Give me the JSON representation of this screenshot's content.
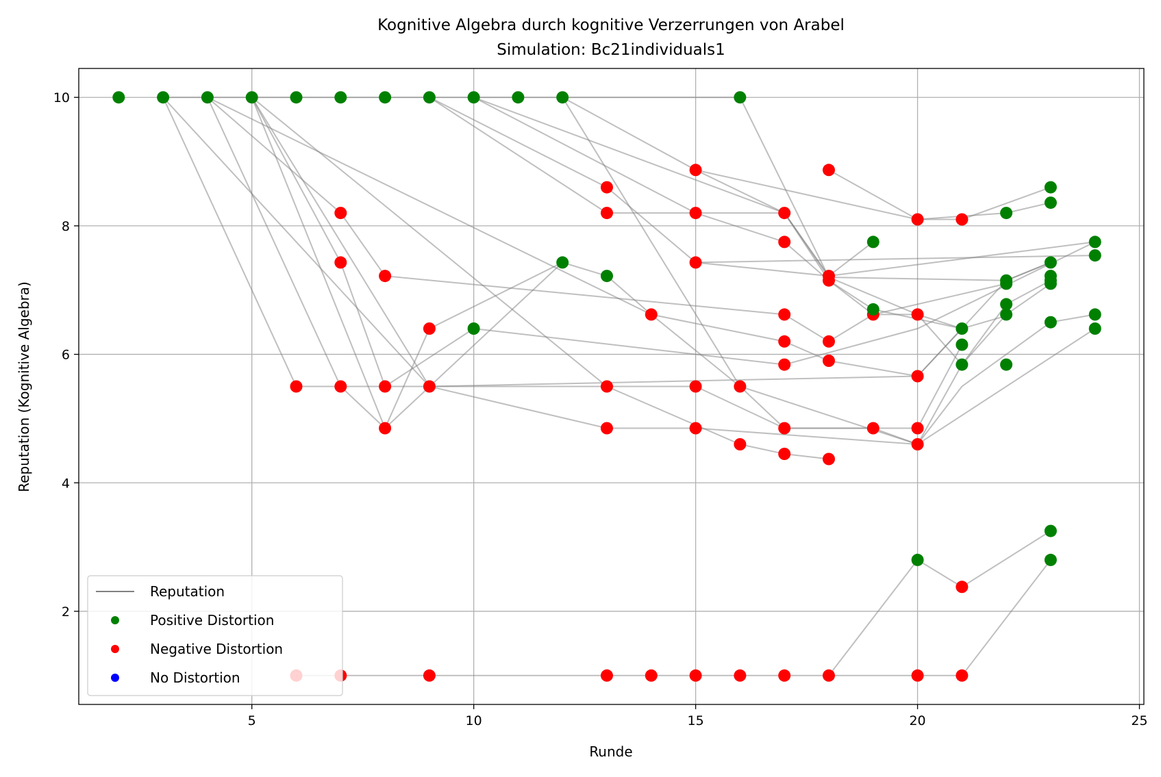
{
  "chart_data": {
    "type": "scatter",
    "title": "Kognitive Algebra durch kognitive Verzerrungen von Arabel",
    "subtitle": "Simulation: Bc21individuals1",
    "xlabel": "Runde",
    "ylabel": "Reputation (Kognitive Algebra)",
    "xlim": [
      1.1,
      25.1
    ],
    "ylim": [
      0.55,
      10.45
    ],
    "xticks": [
      5,
      10,
      15,
      20,
      25
    ],
    "yticks": [
      2,
      4,
      6,
      8,
      10
    ],
    "grid": true,
    "legend_position": "lower-left",
    "legend": [
      {
        "label": "Reputation",
        "kind": "line",
        "color": "#808080"
      },
      {
        "label": "Positive Distortion",
        "kind": "marker",
        "color": "#008000"
      },
      {
        "label": "Negative Distortion",
        "kind": "marker",
        "color": "#ff0000"
      },
      {
        "label": "No Distortion",
        "kind": "marker",
        "color": "#0000ff"
      }
    ],
    "reputation_lines": [
      [
        [
          3,
          10
        ],
        [
          4,
          10
        ],
        [
          5,
          10
        ],
        [
          6,
          10
        ],
        [
          7,
          10
        ],
        [
          8,
          10
        ],
        [
          9,
          10
        ],
        [
          10,
          10
        ],
        [
          11,
          10
        ],
        [
          12,
          10
        ]
      ],
      [
        [
          12,
          10
        ],
        [
          16,
          10
        ]
      ],
      [
        [
          6,
          1
        ],
        [
          7,
          1
        ],
        [
          8,
          1
        ],
        [
          9,
          1
        ],
        [
          10,
          1
        ],
        [
          13,
          1
        ],
        [
          14,
          1
        ],
        [
          15,
          1
        ],
        [
          16,
          1
        ],
        [
          17,
          1
        ],
        [
          18,
          1
        ]
      ],
      [
        [
          18,
          1
        ],
        [
          20,
          1
        ],
        [
          21,
          1
        ]
      ],
      [
        [
          18,
          1
        ],
        [
          20,
          2.8
        ],
        [
          21,
          2.38
        ],
        [
          23,
          3.25
        ]
      ],
      [
        [
          21,
          1
        ],
        [
          23,
          2.8
        ]
      ],
      [
        [
          3,
          10
        ],
        [
          6,
          5.5
        ],
        [
          7,
          5.5
        ],
        [
          8,
          4.85
        ],
        [
          12,
          7.43
        ],
        [
          13,
          7.22
        ],
        [
          14,
          6.62
        ],
        [
          17,
          6.2
        ],
        [
          18,
          5.9
        ],
        [
          20,
          5.66
        ],
        [
          21,
          6.4
        ],
        [
          22,
          7.15
        ],
        [
          23,
          7.43
        ]
      ],
      [
        [
          3,
          10
        ],
        [
          9,
          5.5
        ],
        [
          13,
          4.85
        ],
        [
          15,
          4.85
        ],
        [
          20,
          4.6
        ],
        [
          21,
          5.84
        ],
        [
          22,
          6.62
        ],
        [
          23,
          7.1
        ]
      ],
      [
        [
          4,
          10
        ],
        [
          7,
          5.5
        ],
        [
          9,
          5.5
        ],
        [
          15,
          5.5
        ],
        [
          17,
          4.85
        ],
        [
          19,
          4.85
        ],
        [
          20,
          4.85
        ],
        [
          21,
          6.15
        ]
      ],
      [
        [
          4,
          10
        ],
        [
          7,
          8.2
        ],
        [
          8,
          7.22
        ],
        [
          17,
          6.62
        ],
        [
          18,
          6.2
        ],
        [
          19,
          6.62
        ],
        [
          20,
          6.62
        ],
        [
          21,
          5.84
        ],
        [
          22,
          6.78
        ],
        [
          23,
          7.15
        ]
      ],
      [
        [
          4,
          10
        ],
        [
          14,
          6.62
        ],
        [
          16,
          5.5
        ],
        [
          20,
          4.6
        ],
        [
          21,
          5.5
        ],
        [
          23,
          6.5
        ],
        [
          24,
          6.62
        ]
      ],
      [
        [
          5,
          10
        ],
        [
          7,
          7.43
        ],
        [
          8,
          5.5
        ],
        [
          10,
          6.4
        ],
        [
          17,
          5.84
        ],
        [
          20,
          6.4
        ],
        [
          24,
          7.75
        ]
      ],
      [
        [
          5,
          10
        ],
        [
          8,
          4.85
        ],
        [
          9,
          6.4
        ],
        [
          12,
          7.43
        ]
      ],
      [
        [
          5,
          10
        ],
        [
          13,
          5.5
        ],
        [
          16,
          4.6
        ],
        [
          17,
          4.45
        ],
        [
          18,
          4.37
        ]
      ],
      [
        [
          5,
          10
        ],
        [
          9,
          5.5
        ],
        [
          20,
          5.66
        ],
        [
          21,
          6.4
        ]
      ],
      [
        [
          9,
          10
        ],
        [
          13,
          8.6
        ],
        [
          15,
          7.43
        ],
        [
          18,
          7.22
        ],
        [
          24,
          7.75
        ]
      ],
      [
        [
          9,
          10
        ],
        [
          13,
          8.2
        ],
        [
          15,
          8.2
        ],
        [
          17,
          7.75
        ],
        [
          18,
          7.15
        ],
        [
          19,
          6.7
        ],
        [
          21,
          6.4
        ]
      ],
      [
        [
          10,
          10
        ],
        [
          15,
          8.2
        ],
        [
          17,
          8.2
        ],
        [
          18,
          7.22
        ],
        [
          19,
          7.75
        ]
      ],
      [
        [
          10,
          10
        ],
        [
          17,
          8.2
        ],
        [
          18,
          7.15
        ],
        [
          19,
          6.62
        ],
        [
          22,
          7.1
        ]
      ],
      [
        [
          12,
          10
        ],
        [
          15,
          8.87
        ],
        [
          17,
          8.2
        ],
        [
          18,
          7.2
        ],
        [
          22,
          7.15
        ],
        [
          23,
          7.43
        ]
      ],
      [
        [
          12,
          10
        ],
        [
          16,
          5.5
        ],
        [
          17,
          4.85
        ],
        [
          19,
          4.85
        ],
        [
          20,
          4.6
        ],
        [
          24,
          6.4
        ]
      ],
      [
        [
          15,
          8.87
        ],
        [
          20,
          8.1
        ],
        [
          22,
          8.2
        ],
        [
          23,
          8.36
        ]
      ],
      [
        [
          18,
          8.87
        ],
        [
          20,
          8.1
        ],
        [
          21,
          8.1
        ],
        [
          23,
          8.6
        ]
      ],
      [
        [
          15,
          7.43
        ],
        [
          24,
          7.54
        ]
      ],
      [
        [
          16,
          10
        ],
        [
          18,
          7.2
        ],
        [
          20,
          6.62
        ],
        [
          21,
          6.4
        ],
        [
          22,
          6.6
        ]
      ]
    ],
    "positive_points": [
      [
        2,
        10
      ],
      [
        3,
        10
      ],
      [
        4,
        10
      ],
      [
        5,
        10
      ],
      [
        6,
        10
      ],
      [
        7,
        10
      ],
      [
        8,
        10
      ],
      [
        9,
        10
      ],
      [
        10,
        10
      ],
      [
        11,
        10
      ],
      [
        12,
        10
      ],
      [
        16,
        10
      ],
      [
        12,
        7.43
      ],
      [
        13,
        7.22
      ],
      [
        10,
        6.4
      ],
      [
        19,
        7.75
      ],
      [
        19,
        6.7
      ],
      [
        20,
        2.8
      ],
      [
        21,
        6.4
      ],
      [
        21,
        6.15
      ],
      [
        21,
        5.84
      ],
      [
        22,
        8.2
      ],
      [
        22,
        7.15
      ],
      [
        22,
        7.1
      ],
      [
        22,
        6.78
      ],
      [
        22,
        6.62
      ],
      [
        22,
        5.84
      ],
      [
        23,
        8.6
      ],
      [
        23,
        8.36
      ],
      [
        23,
        7.43
      ],
      [
        23,
        7.22
      ],
      [
        23,
        7.15
      ],
      [
        23,
        7.1
      ],
      [
        23,
        6.5
      ],
      [
        23,
        3.25
      ],
      [
        23,
        2.8
      ],
      [
        24,
        7.75
      ],
      [
        24,
        7.54
      ],
      [
        24,
        6.62
      ],
      [
        24,
        6.4
      ]
    ],
    "negative_points": [
      [
        6,
        5.5
      ],
      [
        7,
        8.2
      ],
      [
        7,
        7.43
      ],
      [
        7,
        5.5
      ],
      [
        8,
        7.22
      ],
      [
        8,
        5.5
      ],
      [
        8,
        4.85
      ],
      [
        9,
        6.4
      ],
      [
        9,
        5.5
      ],
      [
        13,
        8.6
      ],
      [
        13,
        8.2
      ],
      [
        13,
        5.5
      ],
      [
        13,
        4.85
      ],
      [
        14,
        6.62
      ],
      [
        15,
        8.87
      ],
      [
        15,
        8.2
      ],
      [
        15,
        7.43
      ],
      [
        15,
        5.5
      ],
      [
        15,
        4.85
      ],
      [
        16,
        5.5
      ],
      [
        16,
        4.6
      ],
      [
        17,
        8.2
      ],
      [
        17,
        7.75
      ],
      [
        17,
        6.62
      ],
      [
        17,
        6.2
      ],
      [
        17,
        5.84
      ],
      [
        17,
        4.85
      ],
      [
        17,
        4.45
      ],
      [
        18,
        8.87
      ],
      [
        18,
        7.22
      ],
      [
        18,
        7.15
      ],
      [
        18,
        6.2
      ],
      [
        18,
        5.9
      ],
      [
        18,
        4.37
      ],
      [
        19,
        6.62
      ],
      [
        19,
        4.85
      ],
      [
        20,
        8.1
      ],
      [
        20,
        6.62
      ],
      [
        20,
        5.66
      ],
      [
        20,
        4.85
      ],
      [
        20,
        4.6
      ],
      [
        21,
        8.1
      ],
      [
        21,
        2.38
      ],
      [
        6,
        1
      ],
      [
        7,
        1
      ],
      [
        9,
        1
      ],
      [
        13,
        1
      ],
      [
        14,
        1
      ],
      [
        15,
        1
      ],
      [
        16,
        1
      ],
      [
        17,
        1
      ],
      [
        18,
        1
      ],
      [
        20,
        1
      ],
      [
        21,
        1
      ]
    ],
    "faint_points": [
      [
        6,
        1
      ]
    ],
    "no_distortion_points": []
  }
}
